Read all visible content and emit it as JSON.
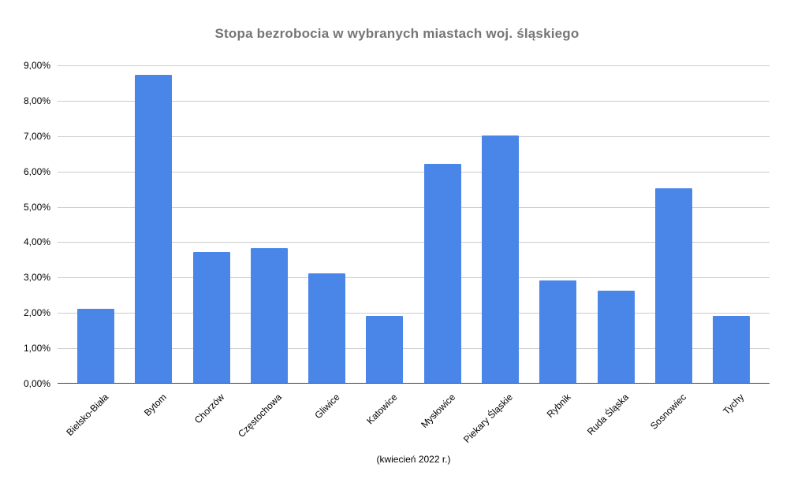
{
  "chart_data": {
    "type": "bar",
    "title": "Stopa bezrobocia w wybranych miastach woj. śląskiego",
    "caption": "(kwiecień 2022 r.)",
    "categories": [
      "Bielsko-Biała",
      "Bytom",
      "Chorzów",
      "Częstochowa",
      "Gliwice",
      "Katowice",
      "Mysłowice",
      "Piekary Śląskie",
      "Rybnik",
      "Ruda Śląska",
      "Sosnowiec",
      "Tychy"
    ],
    "values": [
      2.1,
      8.7,
      3.7,
      3.8,
      3.1,
      1.9,
      6.2,
      7.0,
      2.9,
      2.6,
      5.5,
      1.9
    ],
    "value_unit": "percent",
    "y_ticks": [
      "0,00%",
      "1,00%",
      "2,00%",
      "3,00%",
      "4,00%",
      "5,00%",
      "6,00%",
      "7,00%",
      "8,00%",
      "9,00%"
    ],
    "ylim": [
      0,
      9
    ],
    "grid": true,
    "legend": "none",
    "colors": {
      "bar": "#4A86E8",
      "gridline": "#cccccc",
      "axis": "#424242",
      "title": "#757575",
      "tick_text": "#000000",
      "background": "#ffffff"
    }
  }
}
